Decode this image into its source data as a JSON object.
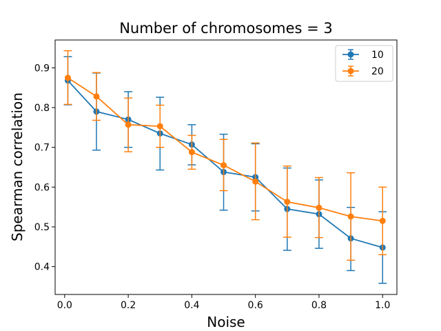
{
  "chart_data": {
    "type": "line",
    "title": "Number of chromosomes = 3",
    "xlabel": "Noise",
    "ylabel": "Spearman correlation",
    "xlim": [
      -0.03,
      1.045
    ],
    "ylim": [
      0.33,
      0.97
    ],
    "xticks": [
      0.0,
      0.2,
      0.4,
      0.6,
      0.8,
      1.0
    ],
    "xtick_labels": [
      "0.0",
      "0.2",
      "0.4",
      "0.6",
      "0.8",
      "1.0"
    ],
    "yticks": [
      0.4,
      0.5,
      0.6,
      0.7,
      0.8,
      0.9
    ],
    "ytick_labels": [
      "0.4",
      "0.5",
      "0.6",
      "0.7",
      "0.8",
      "0.9"
    ],
    "grid": false,
    "legend_position": "top-right",
    "x": [
      0.01,
      0.1,
      0.2,
      0.3,
      0.4,
      0.5,
      0.6,
      0.7,
      0.8,
      0.9,
      1.0
    ],
    "series": [
      {
        "name": "10",
        "color": "#1f77b4",
        "values": [
          0.868,
          0.79,
          0.77,
          0.735,
          0.707,
          0.638,
          0.625,
          0.545,
          0.532,
          0.471,
          0.448
        ],
        "err_low": [
          0.807,
          0.693,
          0.7,
          0.643,
          0.656,
          0.542,
          0.54,
          0.441,
          0.446,
          0.39,
          0.358
        ],
        "err_high": [
          0.928,
          0.887,
          0.84,
          0.826,
          0.757,
          0.733,
          0.709,
          0.648,
          0.618,
          0.549,
          0.538
        ]
      },
      {
        "name": "20",
        "color": "#ff7f0e",
        "values": [
          0.875,
          0.828,
          0.757,
          0.753,
          0.688,
          0.655,
          0.614,
          0.563,
          0.548,
          0.526,
          0.515
        ],
        "err_low": [
          0.808,
          0.768,
          0.689,
          0.7,
          0.645,
          0.591,
          0.518,
          0.474,
          0.473,
          0.416,
          0.43
        ],
        "err_high": [
          0.943,
          0.888,
          0.824,
          0.806,
          0.73,
          0.72,
          0.711,
          0.653,
          0.624,
          0.636,
          0.6
        ]
      }
    ]
  }
}
